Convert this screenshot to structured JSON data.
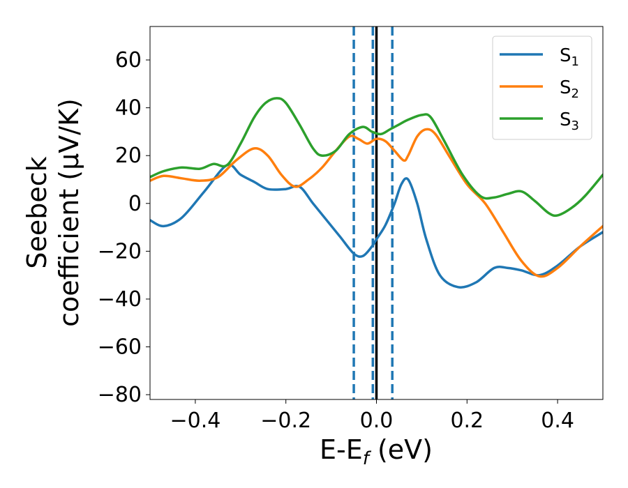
{
  "chart_data": {
    "type": "line",
    "xlabel": "E-E",
    "xlabel_sub": "f",
    "xlabel_suffix": " (eV)",
    "ylabel_line1": "Seebeck",
    "ylabel_line2": "coefficient  (μV/K)",
    "xlim": [
      -0.5,
      0.5
    ],
    "ylim": [
      -82,
      74
    ],
    "xticks": [
      -0.4,
      -0.2,
      0.0,
      0.2,
      0.4
    ],
    "xtick_labels": [
      "−0.4",
      "−0.2",
      "0.0",
      "0.2",
      "0.4"
    ],
    "yticks": [
      -80,
      -60,
      -40,
      -20,
      0,
      20,
      40,
      60
    ],
    "ytick_labels": [
      "−80",
      "−60",
      "−40",
      "−20",
      "0",
      "20",
      "40",
      "60"
    ],
    "grid": false,
    "legend_position": "top-right",
    "vlines": [
      {
        "x": 0.0,
        "style": "solid",
        "color": "#000000"
      },
      {
        "x": -0.05,
        "style": "dashed",
        "color": "#1f77b4"
      },
      {
        "x": -0.008,
        "style": "dashed",
        "color": "#1f77b4"
      },
      {
        "x": 0.035,
        "style": "dashed",
        "color": "#1f77b4"
      }
    ],
    "series": [
      {
        "name": "S",
        "name_sub": "1",
        "color": "#1f77b4",
        "x": [
          -0.5,
          -0.47,
          -0.43,
          -0.38,
          -0.33,
          -0.3,
          -0.27,
          -0.24,
          -0.2,
          -0.17,
          -0.14,
          -0.11,
          -0.08,
          -0.05,
          -0.03,
          -0.01,
          0.0,
          0.02,
          0.04,
          0.055,
          0.07,
          0.09,
          0.11,
          0.14,
          0.18,
          0.22,
          0.26,
          0.29,
          0.32,
          0.36,
          0.4,
          0.45,
          0.5
        ],
        "y": [
          -7,
          -9.5,
          -6,
          5,
          16,
          12,
          9,
          6,
          6,
          7,
          0,
          -7,
          -14,
          -21,
          -22,
          -18,
          -15,
          -9,
          0,
          8,
          10,
          0,
          -15,
          -30,
          -35,
          -33,
          -27,
          -27,
          -28,
          -30,
          -26,
          -18,
          -12
        ]
      },
      {
        "name": "S",
        "name_sub": "2",
        "color": "#ff7f0e",
        "x": [
          -0.5,
          -0.47,
          -0.43,
          -0.39,
          -0.35,
          -0.31,
          -0.27,
          -0.24,
          -0.21,
          -0.18,
          -0.15,
          -0.12,
          -0.09,
          -0.06,
          -0.04,
          -0.02,
          0.0,
          0.02,
          0.04,
          0.06,
          0.07,
          0.09,
          0.11,
          0.13,
          0.16,
          0.2,
          0.24,
          0.28,
          0.32,
          0.36,
          0.4,
          0.45,
          0.5
        ],
        "y": [
          9.5,
          11.5,
          10.5,
          9.5,
          11,
          18,
          23,
          20,
          12,
          7,
          10,
          15,
          22,
          28,
          27,
          25,
          27,
          26,
          22,
          18,
          20,
          28,
          31,
          29,
          20,
          8,
          0,
          -12,
          -24,
          -30.5,
          -27,
          -18,
          -9.5
        ]
      },
      {
        "name": "S",
        "name_sub": "3",
        "color": "#2ca02c",
        "x": [
          -0.5,
          -0.47,
          -0.43,
          -0.39,
          -0.36,
          -0.33,
          -0.3,
          -0.27,
          -0.245,
          -0.22,
          -0.2,
          -0.17,
          -0.14,
          -0.12,
          -0.09,
          -0.06,
          -0.03,
          -0.01,
          0.01,
          0.03,
          0.05,
          0.07,
          0.1,
          0.12,
          0.15,
          0.19,
          0.23,
          0.26,
          0.29,
          0.32,
          0.35,
          0.38,
          0.4,
          0.43,
          0.46,
          0.5
        ],
        "y": [
          11,
          13.5,
          15,
          14.5,
          16.5,
          16,
          25,
          36,
          42,
          44,
          42,
          33,
          23,
          20,
          22,
          29,
          32,
          30,
          29,
          31,
          33,
          35,
          37,
          36,
          26,
          12,
          3,
          2.5,
          4,
          5,
          1,
          -4,
          -5,
          -2,
          3,
          12
        ]
      }
    ]
  }
}
